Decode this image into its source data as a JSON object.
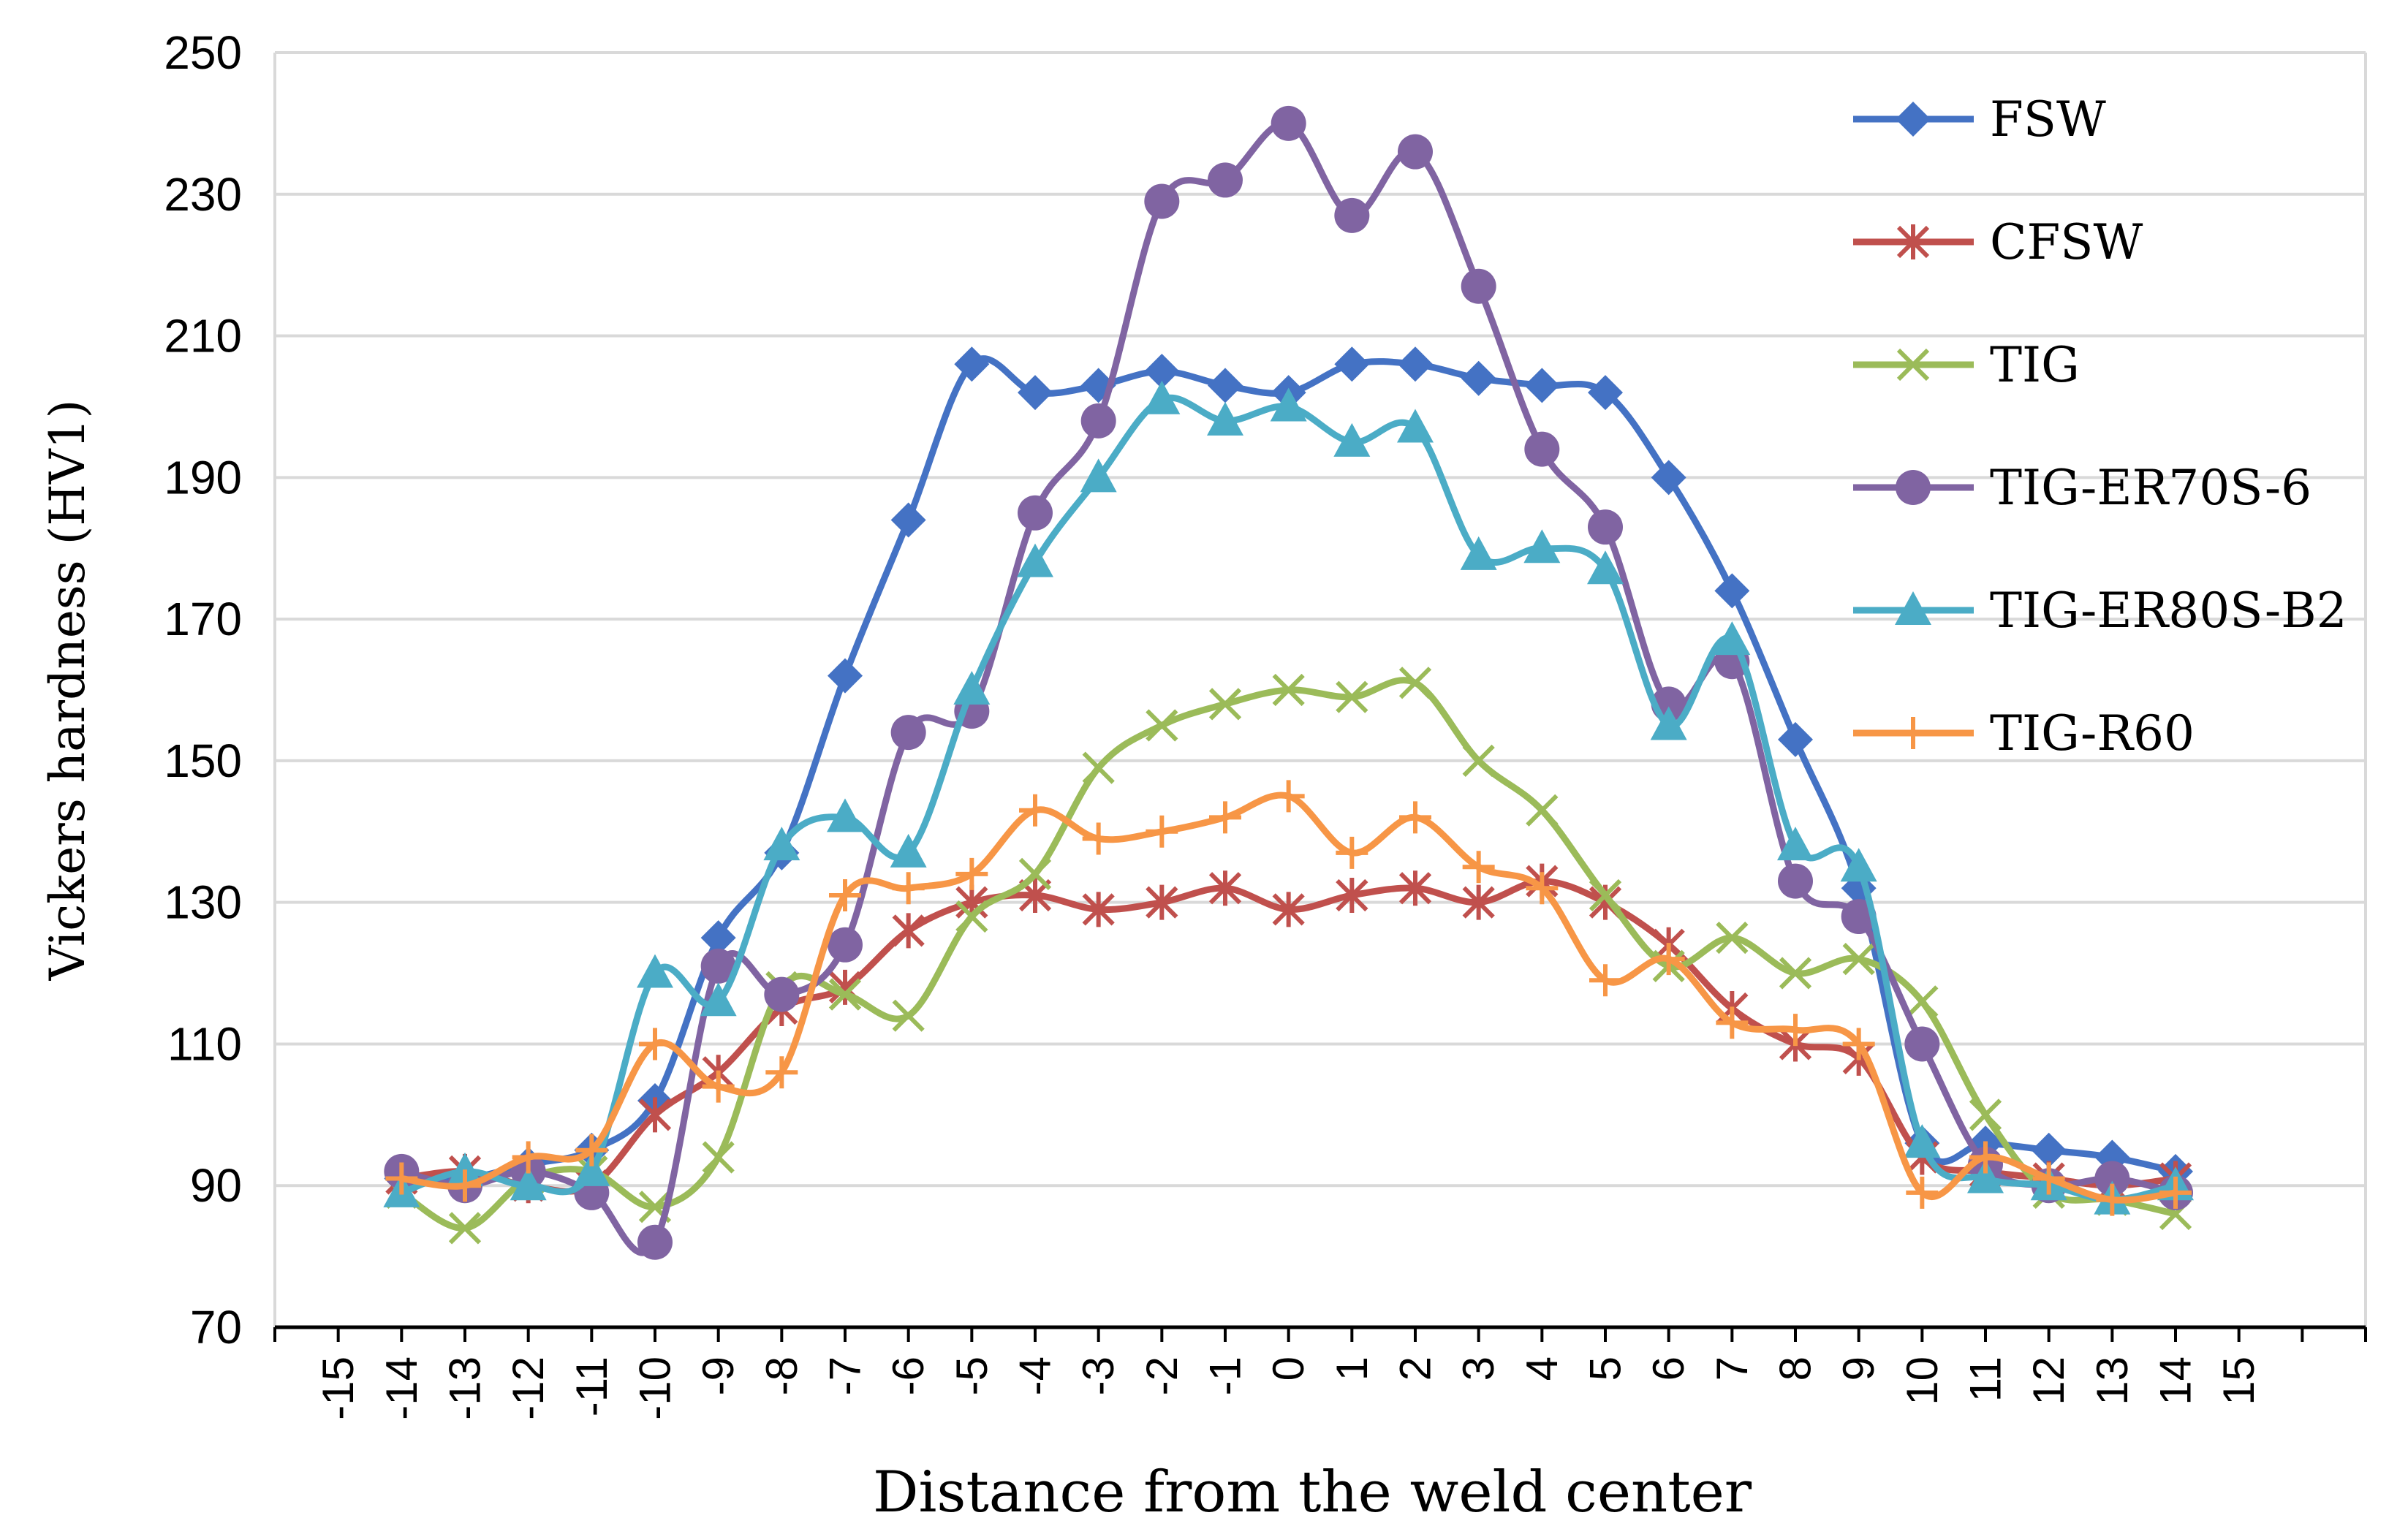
{
  "chart_data": {
    "type": "line",
    "title": "",
    "xlabel": "Distance from the weld center",
    "ylabel": "Vickers hardness (HV1)",
    "ylim": [
      70,
      250
    ],
    "yticks": [
      70,
      90,
      110,
      130,
      150,
      170,
      190,
      210,
      230,
      250
    ],
    "xlim": [
      -16,
      17
    ],
    "xticks": [
      "-15",
      "-14",
      "-13",
      "-12",
      "-11",
      "-10",
      "-9",
      "-8",
      "-7",
      "-6",
      "-5",
      "-4",
      "-3",
      "-2",
      "-1",
      "0",
      "1",
      "2",
      "3",
      "4",
      "5",
      "6",
      "7",
      "8",
      "9",
      "10",
      "11",
      "12",
      "13",
      "14",
      "15"
    ],
    "grid": "horizontal",
    "legend_position": "top-right",
    "x": [
      -14,
      -13,
      -12,
      -11,
      -10,
      -9,
      -8,
      -7,
      -6,
      -5,
      -4,
      -3,
      -2,
      -1,
      0,
      1,
      2,
      3,
      4,
      5,
      6,
      7,
      8,
      9,
      10,
      11,
      12,
      13,
      14
    ],
    "series": [
      {
        "name": "FSW",
        "color": "#4472c4",
        "marker": "diamond",
        "values": [
          91,
          91,
          93,
          95,
          102,
          125,
          137,
          162,
          184,
          206,
          202,
          203,
          205,
          203,
          202,
          206,
          206,
          204,
          203,
          202,
          190,
          174,
          153,
          132,
          96,
          96,
          95,
          94,
          92
        ]
      },
      {
        "name": "CFSW",
        "color": "#c0504d",
        "marker": "star",
        "values": [
          91,
          92,
          90,
          90,
          100,
          106,
          115,
          118,
          126,
          130,
          131,
          129,
          130,
          132,
          129,
          131,
          132,
          130,
          133,
          130,
          124,
          115,
          110,
          108,
          94,
          92,
          91,
          90,
          91
        ]
      },
      {
        "name": "TIG",
        "color": "#9bbb59",
        "marker": "x",
        "values": [
          89,
          84,
          91,
          92,
          87,
          94,
          118,
          117,
          114,
          128,
          134,
          149,
          155,
          158,
          160,
          159,
          161,
          150,
          143,
          131,
          121,
          125,
          120,
          122,
          116,
          100,
          89,
          88,
          86
        ]
      },
      {
        "name": "TIG-ER70S-6",
        "color": "#8064a2",
        "marker": "circle",
        "values": [
          92,
          90,
          92,
          89,
          82,
          121,
          117,
          124,
          154,
          157,
          185,
          198,
          229,
          232,
          240,
          227,
          236,
          217,
          194,
          183,
          158,
          164,
          133,
          128,
          110,
          93,
          90,
          91,
          89
        ]
      },
      {
        "name": "TIG-ER80S-B2",
        "color": "#4bacc6",
        "marker": "triangle",
        "values": [
          89,
          92,
          90,
          92,
          120,
          116,
          138,
          142,
          137,
          160,
          178,
          190,
          201,
          198,
          200,
          195,
          197,
          179,
          180,
          177,
          155,
          167,
          138,
          135,
          96,
          91,
          90,
          88,
          90
        ]
      },
      {
        "name": "TIG-R60",
        "color": "#f79646",
        "marker": "plus",
        "values": [
          91,
          90,
          94,
          95,
          110,
          104,
          106,
          131,
          132,
          134,
          143,
          139,
          140,
          142,
          145,
          137,
          142,
          135,
          132,
          119,
          122,
          113,
          112,
          110,
          89,
          94,
          91,
          88,
          89
        ]
      }
    ]
  }
}
